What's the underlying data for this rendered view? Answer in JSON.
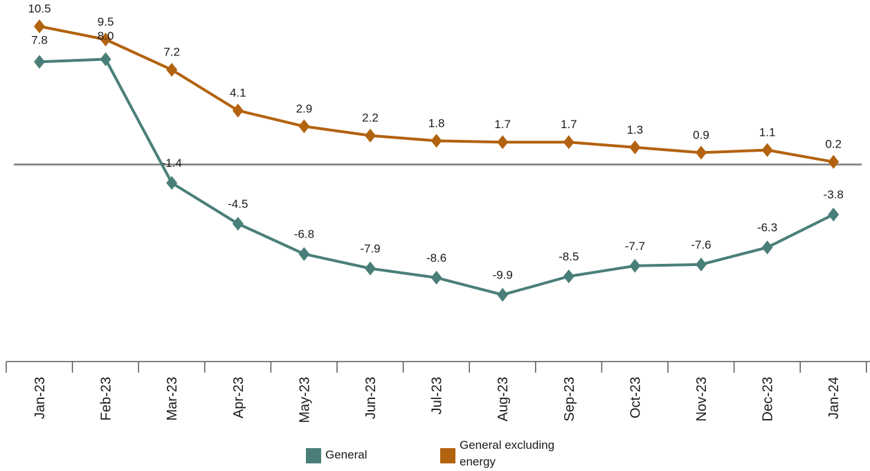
{
  "chart_data": {
    "type": "line",
    "categories": [
      "Jan-23",
      "Feb-23",
      "Mar-23",
      "Apr-23",
      "May-23",
      "Jun-23",
      "Jul-23",
      "Aug-23",
      "Sep-23",
      "Oct-23",
      "Nov-23",
      "Dec-23",
      "Jan-24"
    ],
    "series": [
      {
        "name": "General",
        "color": "#4a7f79",
        "values": [
          7.8,
          8.0,
          -1.4,
          -4.5,
          -6.8,
          -7.9,
          -8.6,
          -9.9,
          -8.5,
          -7.7,
          -7.6,
          -6.3,
          -3.8
        ]
      },
      {
        "name": "General excluding energy",
        "color": "#b3620f",
        "values": [
          10.5,
          9.5,
          7.2,
          4.1,
          2.9,
          2.2,
          1.8,
          1.7,
          1.7,
          1.3,
          0.9,
          1.1,
          0.2
        ]
      }
    ],
    "title": "",
    "xlabel": "",
    "ylabel": "",
    "ylim": [
      -12,
      11.5
    ],
    "grid": false,
    "zero_line": true,
    "marker": "diamond",
    "legend_position": "bottom"
  }
}
